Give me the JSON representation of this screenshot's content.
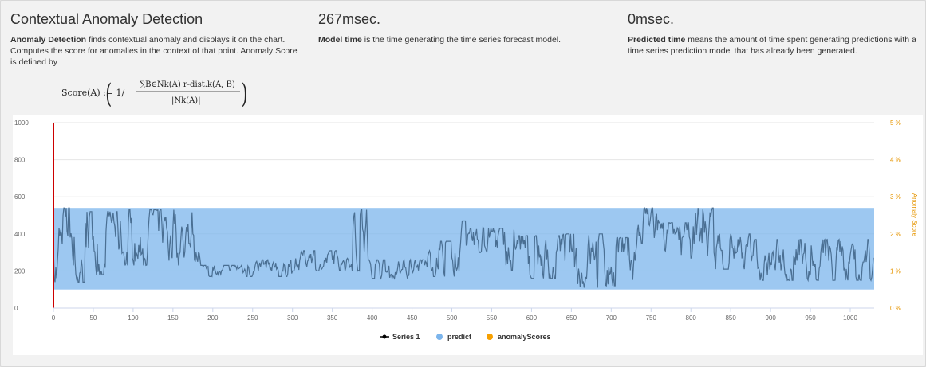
{
  "header": {
    "title": "Contextual Anomaly Detection",
    "desc_bold": "Anomaly Detection",
    "desc_rest": " finds contextual anomaly and displays it on the chart. Computes the score for anomalies in the context of that point. Anomaly Score is defined by"
  },
  "model": {
    "value": "267msec.",
    "desc_bold": "Model time",
    "desc_rest": " is the time generating the time series forecast model."
  },
  "predicted": {
    "value": "0msec.",
    "desc_bold": "Predicted time",
    "desc_rest": " means the amount of time spent generating predictions with a time series prediction model that has already been generated."
  },
  "formula": {
    "lhs": "Score(A) := 1/",
    "numerator": "∑B∈Nk(A) r-dist.k(A, B)",
    "denominator": "|Nk(A)|"
  },
  "chart_data": {
    "type": "line",
    "x_range": [
      0,
      1030
    ],
    "ylim": [
      0,
      1000
    ],
    "y2lim": [
      0,
      5
    ],
    "y2label": "Anomaly Score",
    "x_ticks": [
      0,
      50,
      100,
      150,
      200,
      250,
      300,
      350,
      400,
      450,
      500,
      550,
      600,
      650,
      700,
      750,
      800,
      850,
      900,
      950,
      1000
    ],
    "y_ticks": [
      0,
      200,
      400,
      600,
      800,
      1000
    ],
    "y2_ticks": [
      "0 %",
      "1 %",
      "2 %",
      "3 %",
      "4 %",
      "5 %"
    ],
    "series": [
      {
        "name": "Series 1",
        "color": "#4a6f93",
        "segments": [
          {
            "x0": 0,
            "x1": 40,
            "lo": 140,
            "hi": 540
          },
          {
            "x0": 40,
            "x1": 85,
            "lo": 180,
            "hi": 520
          },
          {
            "x0": 85,
            "x1": 175,
            "lo": 230,
            "hi": 530
          },
          {
            "x0": 175,
            "x1": 185,
            "lo": 250,
            "hi": 400
          },
          {
            "x0": 185,
            "x1": 240,
            "lo": 170,
            "hi": 230
          },
          {
            "x0": 240,
            "x1": 300,
            "lo": 170,
            "hi": 260
          },
          {
            "x0": 300,
            "x1": 375,
            "lo": 200,
            "hi": 310
          },
          {
            "x0": 375,
            "x1": 395,
            "lo": 200,
            "hi": 530
          },
          {
            "x0": 395,
            "x1": 470,
            "lo": 160,
            "hi": 260
          },
          {
            "x0": 470,
            "x1": 510,
            "lo": 170,
            "hi": 360
          },
          {
            "x0": 510,
            "x1": 540,
            "lo": 300,
            "hi": 470
          },
          {
            "x0": 540,
            "x1": 580,
            "lo": 200,
            "hi": 430
          },
          {
            "x0": 580,
            "x1": 640,
            "lo": 160,
            "hi": 390
          },
          {
            "x0": 640,
            "x1": 690,
            "lo": 110,
            "hi": 400
          },
          {
            "x0": 690,
            "x1": 730,
            "lo": 120,
            "hi": 380
          },
          {
            "x0": 730,
            "x1": 760,
            "lo": 240,
            "hi": 540
          },
          {
            "x0": 760,
            "x1": 800,
            "lo": 280,
            "hi": 460
          },
          {
            "x0": 800,
            "x1": 830,
            "lo": 270,
            "hi": 540
          },
          {
            "x0": 830,
            "x1": 880,
            "lo": 210,
            "hi": 400
          },
          {
            "x0": 880,
            "x1": 1030,
            "lo": 150,
            "hi": 370
          }
        ]
      },
      {
        "name": "predict",
        "color": "#7cb5ec",
        "band": {
          "x0": 0,
          "x1": 1030,
          "lo": 100,
          "hi": 540
        }
      },
      {
        "name": "anomalyScores",
        "color": "#f7a000",
        "values": []
      }
    ],
    "vertical_marker": {
      "x": 0,
      "color": "#cc0000"
    }
  },
  "legend": {
    "items": [
      {
        "label": "Series 1",
        "color": "#000000"
      },
      {
        "label": "predict",
        "color": "#7cb5ec"
      },
      {
        "label": "anomalyScores",
        "color": "#f7a000"
      }
    ]
  }
}
